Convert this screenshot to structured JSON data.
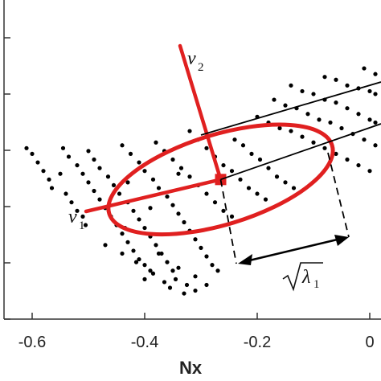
{
  "chart_data": {
    "type": "scatter",
    "title": "",
    "xlabel": "Nx",
    "ylabel": "",
    "xlim": [
      -0.65,
      0.02
    ],
    "ylim": [
      0,
      5.6
    ],
    "xticks": [
      -0.6,
      -0.4,
      -0.2,
      0
    ],
    "xtick_labels": [
      "-0.6",
      "-0.4",
      "-0.2",
      "0"
    ],
    "y_tick_count": 6,
    "grid": false,
    "point_color": "#000000",
    "ellipse_color": "#e02020",
    "points": [
      [
        -0.61,
        3.0
      ],
      [
        -0.6,
        2.9
      ],
      [
        -0.59,
        2.75
      ],
      [
        -0.58,
        2.6
      ],
      [
        -0.57,
        2.45
      ],
      [
        -0.565,
        2.3
      ],
      [
        -0.55,
        2.55
      ],
      [
        -0.54,
        2.2
      ],
      [
        -0.53,
        2.05
      ],
      [
        -0.52,
        1.9
      ],
      [
        -0.51,
        1.8
      ],
      [
        -0.505,
        1.65
      ],
      [
        -0.545,
        3.0
      ],
      [
        -0.535,
        2.85
      ],
      [
        -0.52,
        2.7
      ],
      [
        -0.51,
        2.55
      ],
      [
        -0.5,
        2.4
      ],
      [
        -0.49,
        2.25
      ],
      [
        -0.48,
        2.1
      ],
      [
        -0.47,
        1.95
      ],
      [
        -0.46,
        1.8
      ],
      [
        -0.45,
        1.65
      ],
      [
        -0.44,
        1.5
      ],
      [
        -0.43,
        1.35
      ],
      [
        -0.42,
        1.2
      ],
      [
        -0.41,
        1.05
      ],
      [
        -0.4,
        0.95
      ],
      [
        -0.39,
        0.85
      ],
      [
        -0.5,
        2.95
      ],
      [
        -0.49,
        2.8
      ],
      [
        -0.48,
        2.65
      ],
      [
        -0.465,
        2.5
      ],
      [
        -0.455,
        2.35
      ],
      [
        -0.445,
        2.2
      ],
      [
        -0.43,
        2.05
      ],
      [
        -0.42,
        1.9
      ],
      [
        -0.41,
        1.75
      ],
      [
        -0.4,
        1.6
      ],
      [
        -0.39,
        1.45
      ],
      [
        -0.38,
        1.3
      ],
      [
        -0.37,
        1.15
      ],
      [
        -0.36,
        1.0
      ],
      [
        -0.35,
        0.85
      ],
      [
        -0.345,
        0.7
      ],
      [
        -0.44,
        3.05
      ],
      [
        -0.425,
        2.9
      ],
      [
        -0.41,
        2.75
      ],
      [
        -0.4,
        2.6
      ],
      [
        -0.385,
        2.45
      ],
      [
        -0.375,
        2.3
      ],
      [
        -0.36,
        2.15
      ],
      [
        -0.35,
        2.0
      ],
      [
        -0.34,
        1.85
      ],
      [
        -0.33,
        1.7
      ],
      [
        -0.32,
        1.55
      ],
      [
        -0.31,
        1.4
      ],
      [
        -0.3,
        1.25
      ],
      [
        -0.29,
        1.1
      ],
      [
        -0.28,
        0.95
      ],
      [
        -0.27,
        0.85
      ],
      [
        -0.38,
        3.1
      ],
      [
        -0.365,
        2.95
      ],
      [
        -0.35,
        2.8
      ],
      [
        -0.335,
        2.65
      ],
      [
        -0.32,
        2.5
      ],
      [
        -0.305,
        2.35
      ],
      [
        -0.29,
        2.2
      ],
      [
        -0.275,
        2.05
      ],
      [
        -0.26,
        1.9
      ],
      [
        -0.245,
        1.8
      ],
      [
        -0.32,
        3.3
      ],
      [
        -0.305,
        3.15
      ],
      [
        -0.29,
        3.0
      ],
      [
        -0.275,
        2.85
      ],
      [
        -0.26,
        2.7
      ],
      [
        -0.245,
        2.6
      ],
      [
        -0.23,
        2.45
      ],
      [
        -0.215,
        2.3
      ],
      [
        -0.2,
        2.2
      ],
      [
        -0.185,
        2.1
      ],
      [
        -0.24,
        3.15
      ],
      [
        -0.225,
        3.05
      ],
      [
        -0.21,
        2.9
      ],
      [
        -0.195,
        2.8
      ],
      [
        -0.18,
        2.65
      ],
      [
        -0.165,
        2.5
      ],
      [
        -0.15,
        2.4
      ],
      [
        -0.135,
        2.3
      ],
      [
        -0.2,
        3.55
      ],
      [
        -0.18,
        3.45
      ],
      [
        -0.16,
        3.35
      ],
      [
        -0.14,
        3.3
      ],
      [
        -0.12,
        3.2
      ],
      [
        -0.1,
        3.1
      ],
      [
        -0.08,
        3.0
      ],
      [
        -0.06,
        2.9
      ],
      [
        -0.04,
        2.8
      ],
      [
        -0.02,
        2.7
      ],
      [
        0.0,
        2.6
      ],
      [
        -0.17,
        3.85
      ],
      [
        -0.15,
        3.75
      ],
      [
        -0.13,
        3.7
      ],
      [
        -0.11,
        3.6
      ],
      [
        -0.09,
        3.5
      ],
      [
        -0.07,
        3.45
      ],
      [
        -0.05,
        3.35
      ],
      [
        -0.03,
        3.25
      ],
      [
        -0.01,
        3.15
      ],
      [
        0.01,
        3.05
      ],
      [
        -0.14,
        4.1
      ],
      [
        -0.12,
        4.0
      ],
      [
        -0.1,
        3.95
      ],
      [
        -0.08,
        3.85
      ],
      [
        -0.06,
        3.8
      ],
      [
        -0.04,
        3.7
      ],
      [
        -0.02,
        3.6
      ],
      [
        0.0,
        3.5
      ],
      [
        0.01,
        3.45
      ],
      [
        -0.08,
        4.25
      ],
      [
        -0.06,
        4.2
      ],
      [
        -0.04,
        4.1
      ],
      [
        -0.02,
        4.05
      ],
      [
        0.0,
        4.0
      ],
      [
        0.01,
        3.95
      ],
      [
        -0.01,
        4.4
      ],
      [
        0.01,
        4.3
      ],
      [
        -0.47,
        1.3
      ],
      [
        -0.44,
        1.15
      ],
      [
        -0.415,
        1.0
      ],
      [
        -0.385,
        0.8
      ],
      [
        -0.365,
        0.65
      ],
      [
        -0.355,
        0.55
      ],
      [
        -0.33,
        0.45
      ],
      [
        -0.325,
        0.6
      ],
      [
        -0.31,
        0.75
      ],
      [
        -0.34,
        0.9
      ],
      [
        -0.29,
        0.6
      ],
      [
        -0.31,
        0.5
      ],
      [
        -0.4,
        0.7
      ],
      [
        -0.375,
        1.15
      ],
      [
        -0.435,
        1.6
      ],
      [
        -0.39,
        1.95
      ],
      [
        -0.43,
        2.4
      ],
      [
        -0.34,
        2.55
      ]
    ],
    "ellipse": {
      "cx": -0.265,
      "cy": 2.45,
      "major_dir": [
        0.206,
        1.0
      ],
      "semi_major": 0.205,
      "semi_minor_y": 0.95
    },
    "annotations": {
      "v1": {
        "label": "v",
        "sub": "1"
      },
      "v2": {
        "label": "v",
        "sub": "2"
      },
      "lambda": {
        "label": "λ",
        "sub": "1"
      }
    }
  }
}
